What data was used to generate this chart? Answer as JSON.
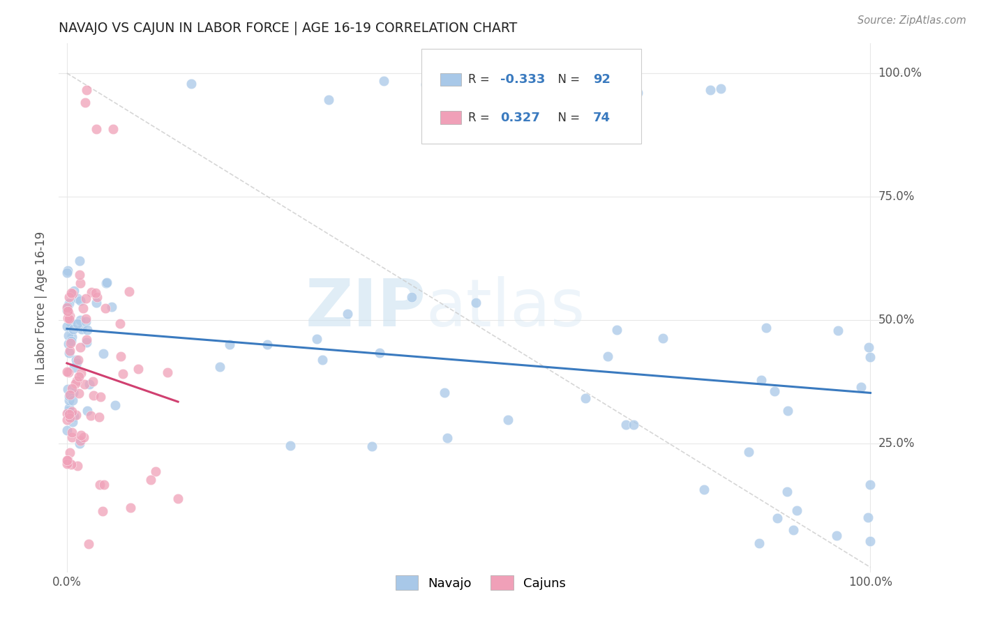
{
  "title": "NAVAJO VS CAJUN IN LABOR FORCE | AGE 16-19 CORRELATION CHART",
  "source": "Source: ZipAtlas.com",
  "ylabel": "In Labor Force | Age 16-19",
  "navajo_R": -0.333,
  "navajo_N": 92,
  "cajun_R": 0.327,
  "cajun_N": 74,
  "navajo_color": "#a8c8e8",
  "cajun_color": "#f0a0b8",
  "navajo_line_color": "#3a7abf",
  "cajun_line_color": "#d04070",
  "ref_line_color": "#cccccc",
  "background_color": "#ffffff",
  "navajo_seed": 10,
  "cajun_seed": 20,
  "title_fontsize": 14,
  "legend_R_color": "#3a7abf",
  "legend_N_color": "#3a7abf"
}
